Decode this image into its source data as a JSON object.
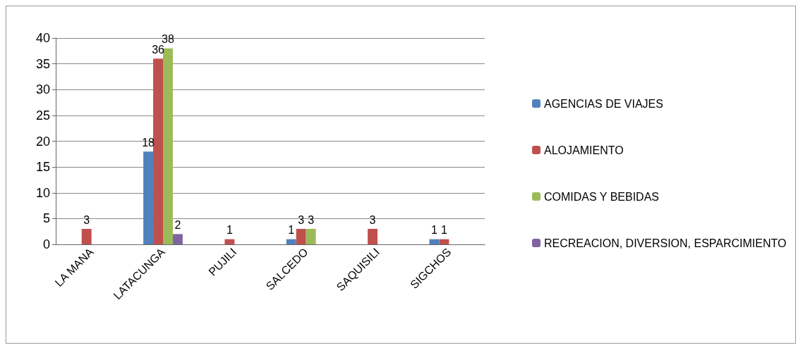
{
  "chart_data": {
    "type": "bar",
    "categories": [
      "LA MANA",
      "LATACUNGA",
      "PUJILI",
      "SALCEDO",
      "SAQUISILI",
      "SIGCHOS"
    ],
    "series": [
      {
        "name": "AGENCIAS DE VIAJES",
        "color": "#4f81bd",
        "values": [
          null,
          18,
          null,
          1,
          null,
          1
        ]
      },
      {
        "name": "ALOJAMIENTO",
        "color": "#c0504d",
        "values": [
          3,
          36,
          1,
          3,
          3,
          1
        ]
      },
      {
        "name": "COMIDAS Y BEBIDAS",
        "color": "#9bbb59",
        "values": [
          null,
          38,
          null,
          3,
          null,
          null
        ]
      },
      {
        "name": "RECREACION, DIVERSION, ESPARCIMIENTO",
        "color": "#8064a2",
        "values": [
          null,
          2,
          null,
          null,
          null,
          null
        ]
      }
    ],
    "ylim": [
      0,
      40
    ],
    "yticks": [
      0,
      5,
      10,
      15,
      20,
      25,
      30,
      35,
      40
    ],
    "grid": "y",
    "legend": "right",
    "data_labels": true
  }
}
